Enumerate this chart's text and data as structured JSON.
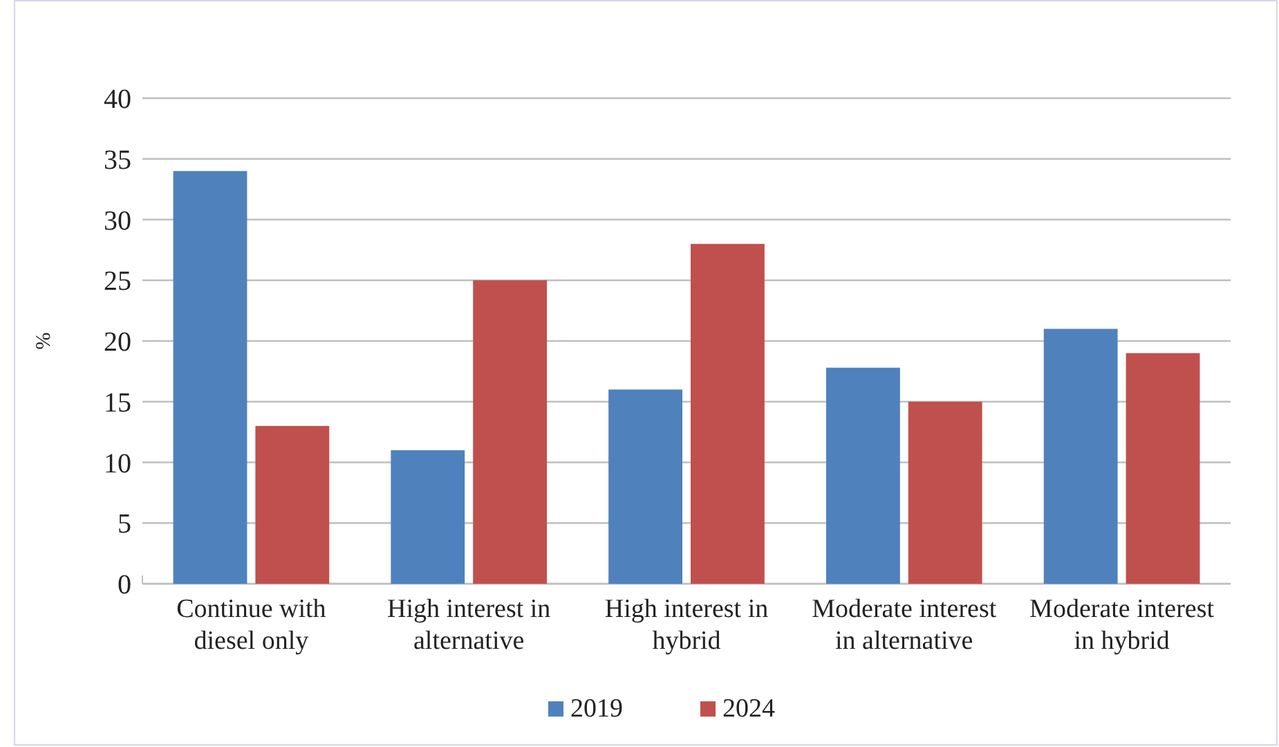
{
  "chart_data": {
    "type": "bar",
    "ylabel": "%",
    "categories": [
      "Continue with diesel only",
      "High interest in alternative",
      "High interest in hybrid",
      "Moderate interest in alternative",
      "Moderate interest in hybrid"
    ],
    "series": [
      {
        "name": "2019",
        "color": "#4f81bd",
        "values": [
          34,
          11,
          16,
          17.8,
          21
        ]
      },
      {
        "name": "2024",
        "color": "#c0504d",
        "values": [
          13,
          25,
          28,
          15,
          19
        ]
      }
    ],
    "ylim": [
      0,
      40
    ],
    "yticks": [
      0,
      5,
      10,
      15,
      20,
      25,
      30,
      35,
      40
    ],
    "grid": "y",
    "legend": "bottom"
  }
}
